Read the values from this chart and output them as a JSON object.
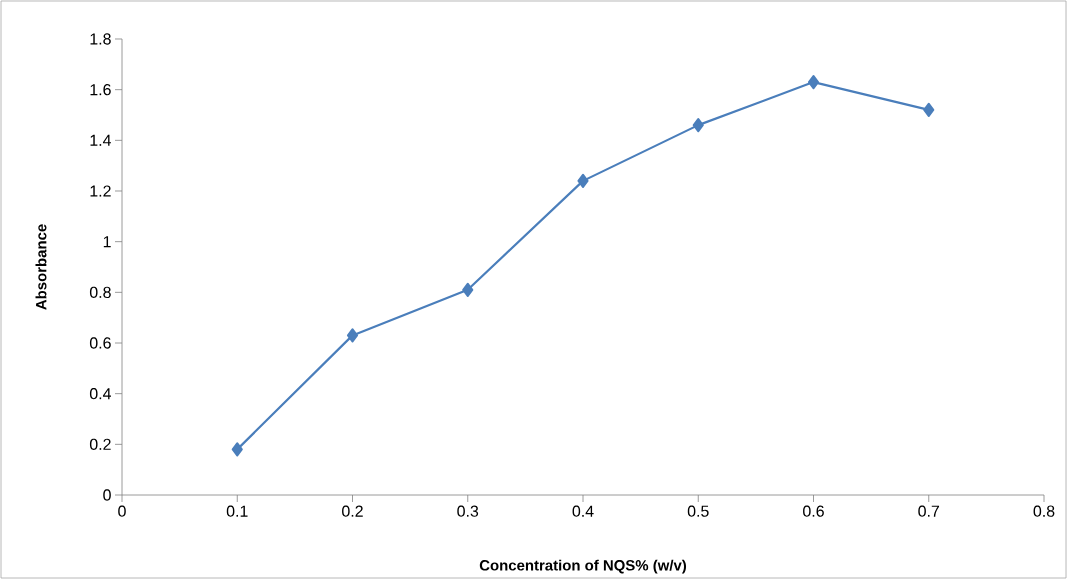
{
  "chart_data": {
    "type": "line",
    "xlabel": "Concentration of NQS% (w/v)",
    "ylabel": "Absorbance",
    "x": [
      0.1,
      0.2,
      0.3,
      0.4,
      0.5,
      0.6,
      0.7
    ],
    "series": [
      {
        "color": "#4a7ebb",
        "values": [
          0.18,
          0.63,
          0.81,
          1.24,
          1.46,
          1.63,
          1.52
        ]
      }
    ],
    "xlim": [
      0,
      0.8
    ],
    "xticks": [
      0,
      0.1,
      0.2,
      0.3,
      0.4,
      0.5,
      0.6,
      0.7,
      0.8
    ],
    "ylim": [
      0,
      1.8
    ],
    "yticks": [
      0,
      0.2,
      0.4,
      0.6,
      0.8,
      1,
      1.2,
      1.4,
      1.6,
      1.8
    ],
    "marker": "diamond",
    "line_style": "solid"
  }
}
